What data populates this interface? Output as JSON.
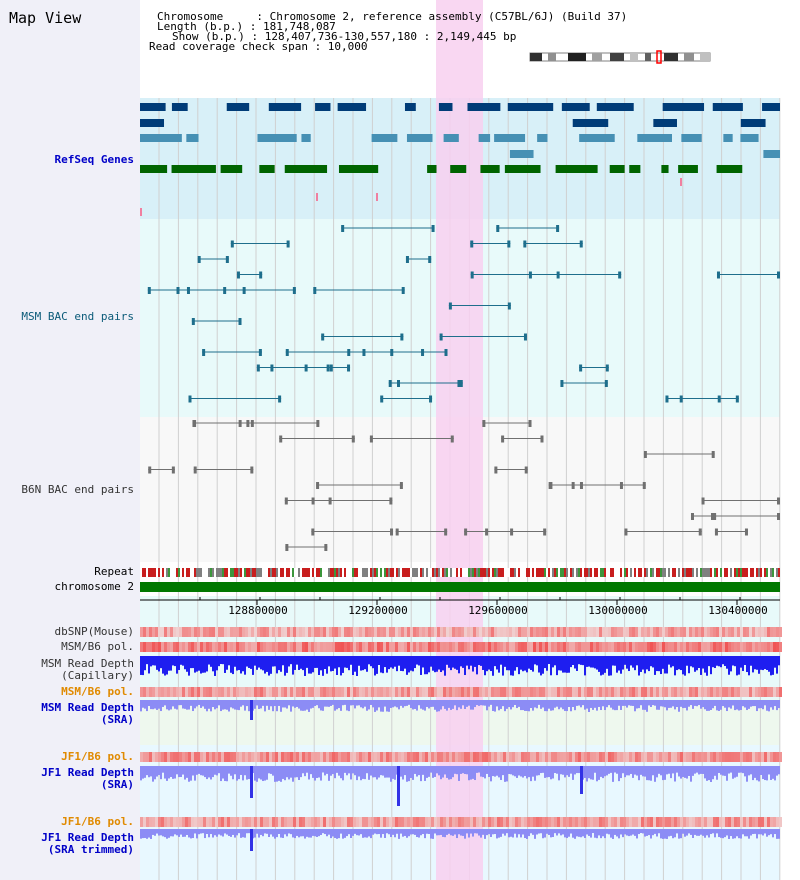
{
  "title": "Map View",
  "info": {
    "line1": "Chromosome     : Chromosome 2, reference assembly (C57BL/6J) (Build 37)",
    "line2": "Length (b.p.) : 181,748,087",
    "line3": "Show (b.p.) : 128,407,736-130,557,180 : 2,149,445 bp",
    "line4": "Read coverage check span : 10,000"
  },
  "tracks": {
    "refseq": "RefSeq Genes",
    "msm_bac": "MSM BAC end pairs",
    "b6n_bac": "B6N BAC end pairs",
    "repeat": "Repeat",
    "chromosome": "chromosome 2",
    "dbsnp": "dbSNP(Mouse)",
    "msm_pol1": "MSM/B6 pol.",
    "msm_depth_cap": "MSM Read Depth\n(Capillary)",
    "msm_pol2": "MSM/B6 pol.",
    "msm_depth_sra": "MSM Read Depth\n(SRA)",
    "jf1_pol1": "JF1/B6 pol.",
    "jf1_depth_sra": "JF1 Read Depth\n(SRA)",
    "jf1_pol2": "JF1/B6 pol.",
    "jf1_depth_trim": "JF1 Read Depth\n(SRA trimmed)"
  },
  "axis": {
    "ticks": [
      "128800000",
      "129200000",
      "129600000",
      "130000000",
      "130400000"
    ]
  },
  "colors": {
    "refseq_bg": "#d8f0f8",
    "msm_bg": "#e8fafa",
    "highlight": "#f8d0f0",
    "gene_dark": "#003c78",
    "gene_mid": "#4690b4",
    "gene_green": "#006400",
    "bac_teal": "#1e6e8c",
    "bac_gray": "#707070",
    "depth_blue": "#1e1ef0",
    "depth_light": "#8c8cf5",
    "pol_red": "#f06464",
    "chrom_green": "#007800"
  }
}
